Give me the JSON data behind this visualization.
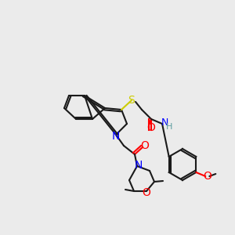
{
  "bg_color": "#ebebeb",
  "bond_color": "#1a1a1a",
  "bond_lw": 1.5,
  "atom_colors": {
    "N": "#0000ff",
    "O": "#ff0000",
    "S": "#cccc00",
    "H": "#5f9ea0",
    "C": "#1a1a1a"
  },
  "font_size": 9
}
